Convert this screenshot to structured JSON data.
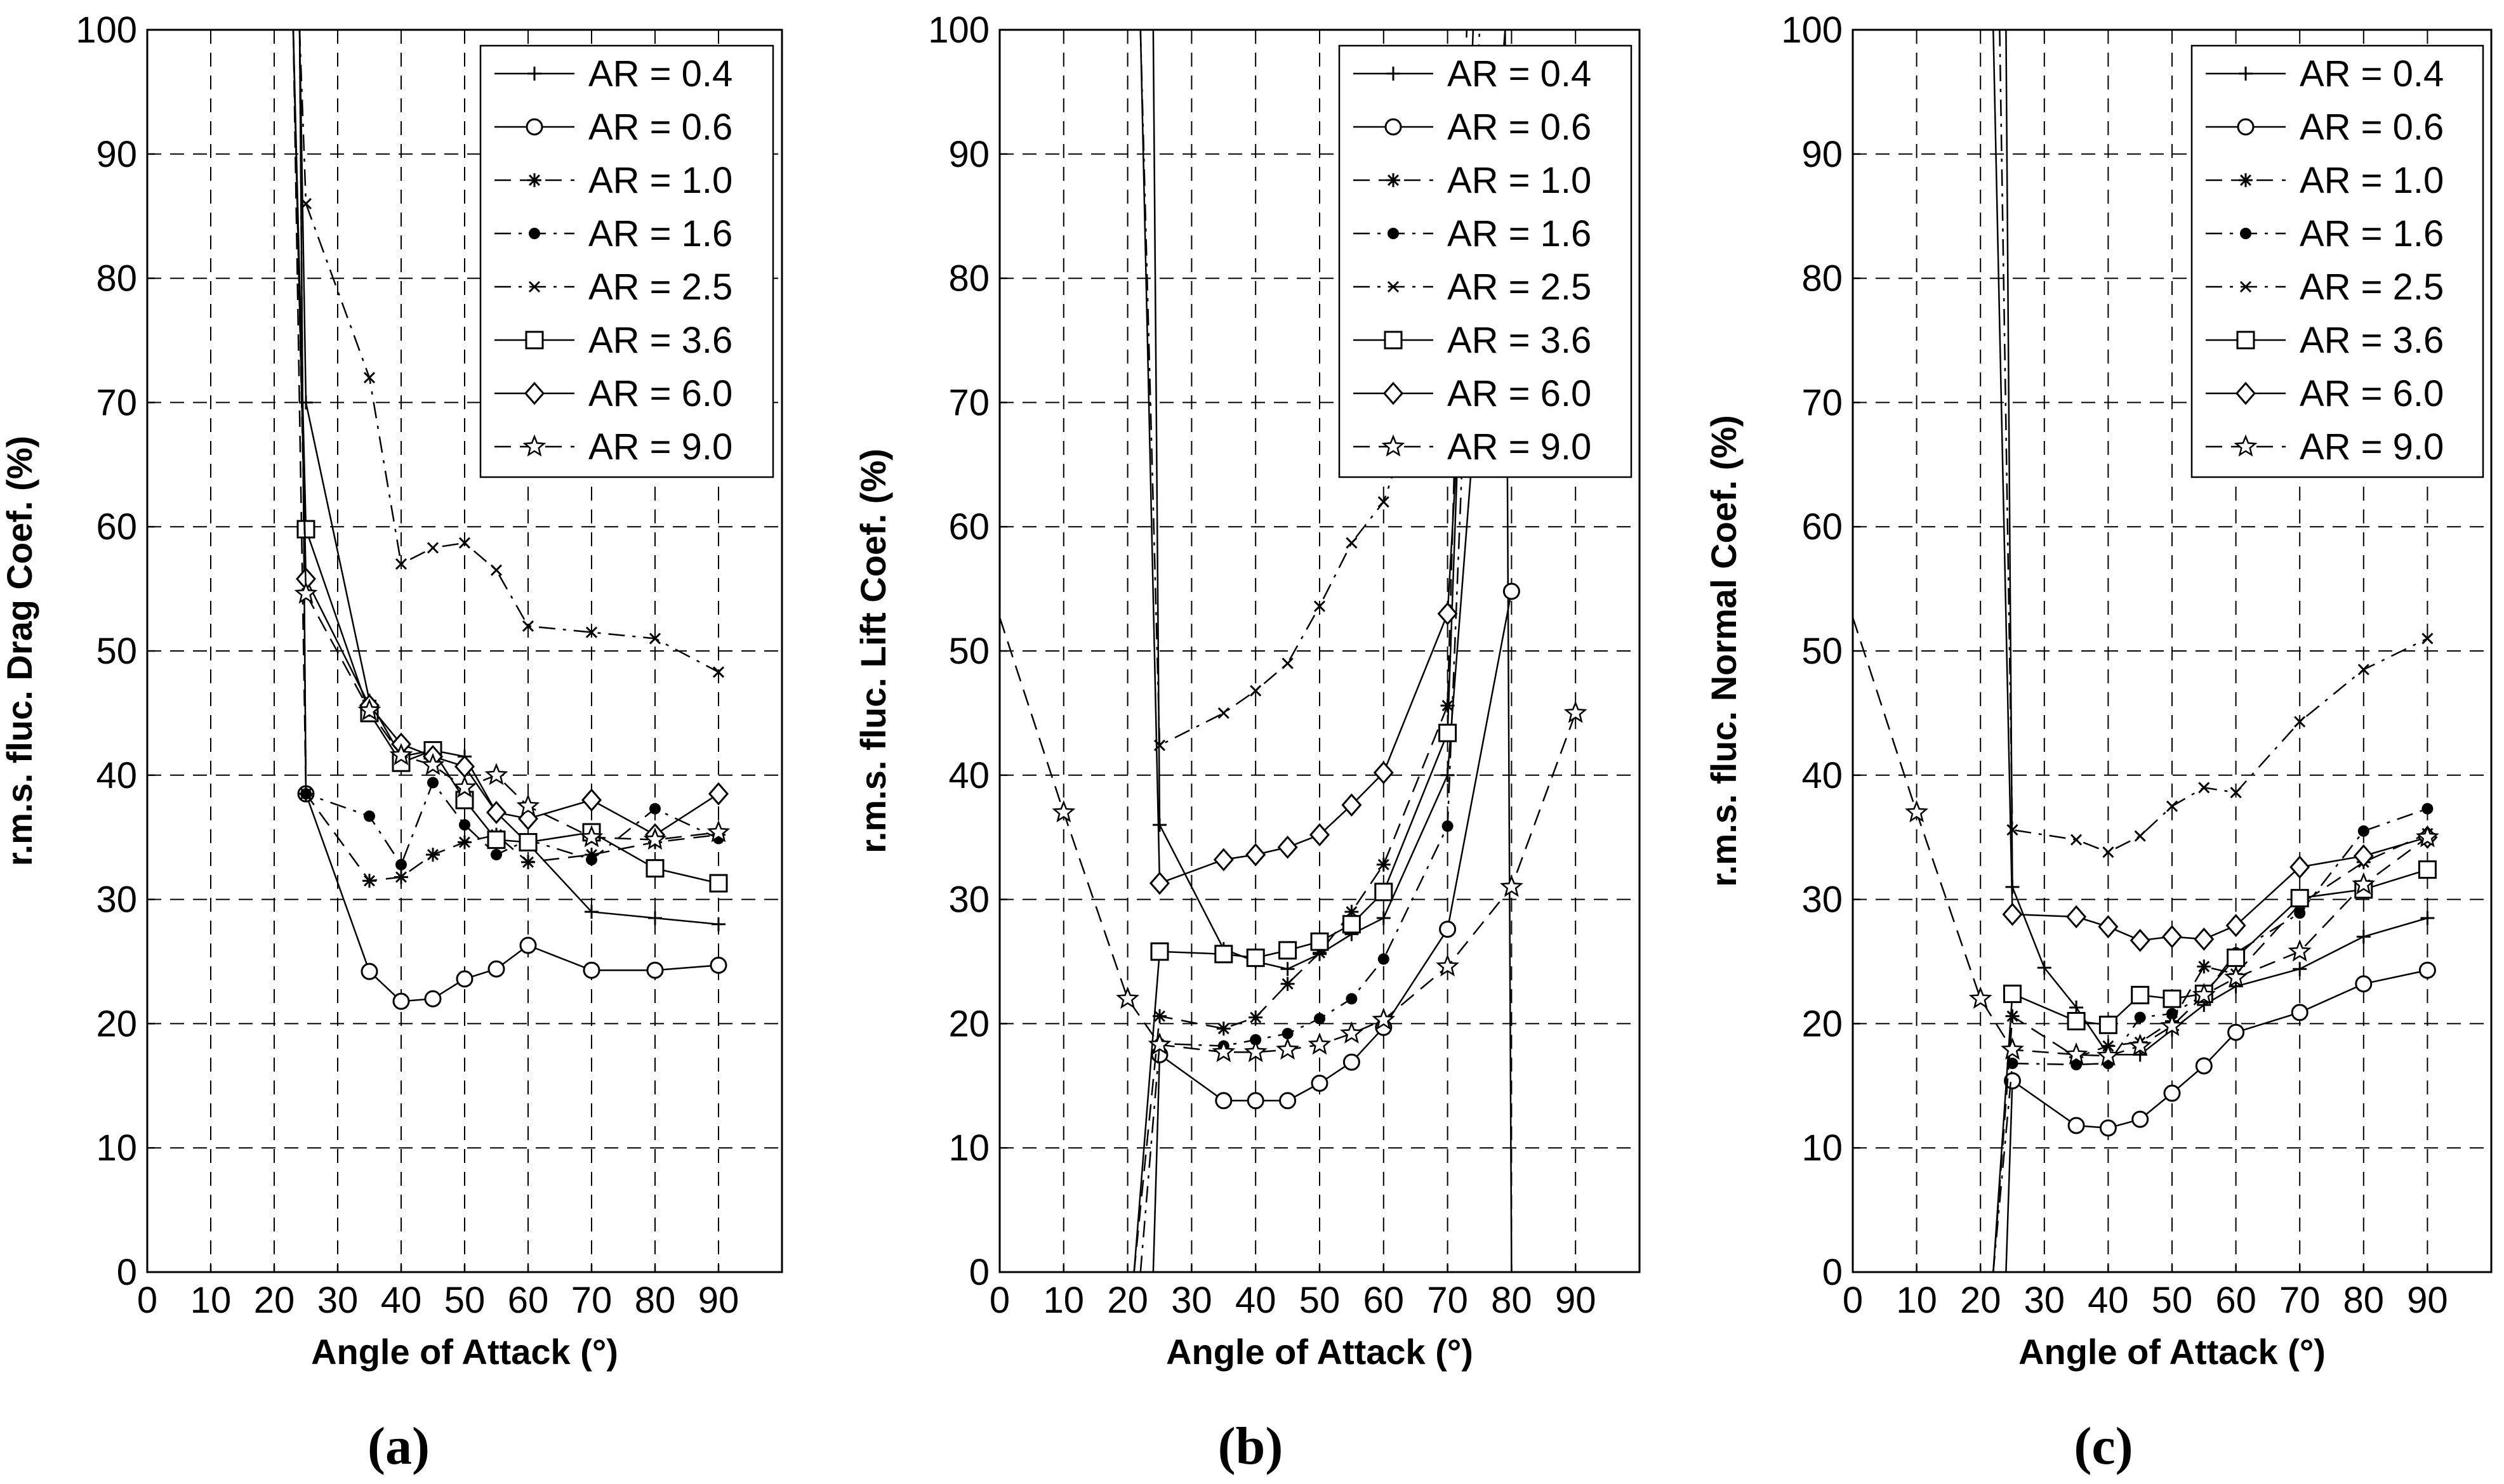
{
  "chart_data": [
    {
      "type": "line",
      "panel_label": "a",
      "xlabel": "Angle of Attack (°)",
      "ylabel": "r.m.s. fluc. Drag Coef. (%)",
      "xlim": [
        0,
        100
      ],
      "ylim": [
        0,
        100
      ],
      "xticks": [
        "0",
        "10",
        "20",
        "30",
        "40",
        "50",
        "60",
        "70",
        "80",
        "90"
      ],
      "yticks": [
        "0",
        "10",
        "20",
        "30",
        "40",
        "50",
        "60",
        "70",
        "80",
        "90",
        "100"
      ],
      "grid": true,
      "legend_position": "top-right",
      "series": [
        {
          "name": "AR = 0.4",
          "marker": "plus",
          "dash": "solid",
          "x": [
            18,
            24,
            25,
            35,
            40,
            45,
            50,
            55,
            60,
            70,
            80,
            90
          ],
          "y": [
            100,
            100,
            70,
            46,
            41.5,
            42,
            41.5,
            37,
            34.5,
            29,
            28.5,
            28
          ]
        },
        {
          "name": "AR = 0.6",
          "marker": "circle",
          "dash": "solid",
          "x": [
            22,
            24,
            25,
            35,
            40,
            45,
            50,
            55,
            60,
            70,
            80,
            90
          ],
          "y": [
            100,
            100,
            38.5,
            24.2,
            21.8,
            22,
            23.6,
            24.4,
            26.3,
            24.3,
            24.3,
            24.7
          ]
        },
        {
          "name": "AR = 1.0",
          "marker": "asterisk",
          "dash": "dash",
          "x": [
            23,
            25,
            35,
            40,
            45,
            50,
            55,
            60,
            70,
            80,
            90
          ],
          "y": [
            100,
            38.5,
            31.5,
            31.8,
            33.6,
            34.6,
            35.2,
            33,
            33.6,
            34.6,
            35.2
          ]
        },
        {
          "name": "AR = 1.6",
          "marker": "dot",
          "dash": "dashdot",
          "x": [
            22,
            24,
            25,
            35,
            40,
            45,
            50,
            55,
            60,
            70,
            80,
            90
          ],
          "y": [
            100,
            100,
            38.5,
            36.7,
            32.8,
            39.4,
            36,
            33.6,
            34.8,
            33.2,
            37.3,
            34.9
          ]
        },
        {
          "name": "AR = 2.5",
          "marker": "x",
          "dash": "dashdot",
          "x": [
            24,
            25,
            35,
            40,
            45,
            50,
            55,
            60,
            70,
            80,
            90
          ],
          "y": [
            100,
            86,
            72,
            57,
            58.3,
            58.7,
            56.5,
            52,
            51.5,
            51,
            48.3
          ]
        },
        {
          "name": "AR = 3.6",
          "marker": "square",
          "dash": "solid",
          "x": [
            20,
            23,
            25,
            35,
            40,
            45,
            50,
            55,
            60,
            70,
            80,
            90
          ],
          "y": [
            100,
            100,
            59.8,
            45,
            41,
            42,
            38,
            34.8,
            34.6,
            35.4,
            32.5,
            31.3
          ]
        },
        {
          "name": "AR = 6.0",
          "marker": "diamond",
          "dash": "solid",
          "x": [
            21,
            23,
            25,
            35,
            40,
            45,
            50,
            55,
            60,
            70,
            80,
            90
          ],
          "y": [
            100,
            100,
            55.8,
            45.6,
            42.5,
            41.5,
            40.7,
            37,
            36.5,
            38,
            35.2,
            38.5
          ]
        },
        {
          "name": "AR = 9.0",
          "marker": "star",
          "dash": "dash",
          "x": [
            20,
            23,
            25,
            35,
            40,
            45,
            50,
            55,
            60,
            70,
            80,
            90
          ],
          "y": [
            100,
            100,
            54.6,
            45.2,
            41.6,
            40.8,
            39,
            40,
            37.5,
            35,
            34.8,
            35.4
          ]
        }
      ]
    },
    {
      "type": "line",
      "panel_label": "b",
      "xlabel": "Angle of Attack (°)",
      "ylabel": "r.m.s. fluc. Lift Coef. (%)",
      "xlim": [
        0,
        100
      ],
      "ylim": [
        0,
        100
      ],
      "xticks": [
        "0",
        "10",
        "20",
        "30",
        "40",
        "50",
        "60",
        "70",
        "80",
        "90"
      ],
      "yticks": [
        "0",
        "10",
        "20",
        "30",
        "40",
        "50",
        "60",
        "70",
        "80",
        "90",
        "100"
      ],
      "grid": true,
      "legend_position": "top-right",
      "series": [
        {
          "name": "AR = 0.4",
          "marker": "plus",
          "dash": "solid",
          "x": [
            20,
            24,
            25,
            35,
            40,
            45,
            50,
            55,
            60,
            70,
            79,
            80
          ],
          "y": [
            100,
            100,
            36,
            26,
            25,
            24.4,
            25.6,
            27.2,
            28.5,
            40,
            100,
            0
          ]
        },
        {
          "name": "AR = 0.6",
          "marker": "circle",
          "dash": "solid",
          "x": [
            20,
            24,
            25,
            35,
            40,
            45,
            50,
            55,
            60,
            70,
            80
          ],
          "y": [
            0,
            0,
            17.5,
            13.8,
            13.8,
            13.8,
            15.2,
            16.9,
            19.7,
            27.6,
            54.8
          ]
        },
        {
          "name": "AR = 1.0",
          "marker": "asterisk",
          "dash": "dash",
          "x": [
            21,
            25,
            35,
            40,
            45,
            50,
            55,
            60,
            70,
            73
          ],
          "y": [
            0,
            20.6,
            19.6,
            20.5,
            23.2,
            25.7,
            29,
            32.8,
            45.6,
            100
          ]
        },
        {
          "name": "AR = 1.6",
          "marker": "dot",
          "dash": "dashdot",
          "x": [
            22,
            25,
            35,
            40,
            45,
            50,
            55,
            60,
            70,
            75
          ],
          "y": [
            0,
            18.4,
            18.2,
            18.7,
            19.2,
            20.4,
            22,
            25.2,
            35.9,
            100
          ]
        },
        {
          "name": "AR = 2.5",
          "marker": "x",
          "dash": "dashdot",
          "x": [
            22,
            25,
            35,
            40,
            45,
            50,
            55,
            60,
            62
          ],
          "y": [
            100,
            42.4,
            45,
            46.8,
            49,
            53.6,
            58.7,
            62,
            65
          ]
        },
        {
          "name": "AR = 3.6",
          "marker": "square",
          "dash": "solid",
          "x": [
            21,
            25,
            35,
            40,
            45,
            50,
            55,
            60,
            70,
            74
          ],
          "y": [
            0,
            25.8,
            25.6,
            25.3,
            25.9,
            26.6,
            28,
            30.6,
            43.4,
            100
          ]
        },
        {
          "name": "AR = 6.0",
          "marker": "diamond",
          "dash": "solid",
          "x": [
            22,
            25,
            35,
            40,
            45,
            50,
            55,
            60,
            70,
            73
          ],
          "y": [
            100,
            31.3,
            33.2,
            33.6,
            34.2,
            35.2,
            37.6,
            40.2,
            53,
            80
          ]
        },
        {
          "name": "AR = 9.0",
          "marker": "star",
          "dash": "dash",
          "x": [
            0,
            10,
            20,
            25,
            35,
            40,
            45,
            50,
            55,
            60,
            70,
            80,
            90
          ],
          "y": [
            52.7,
            37,
            22,
            18.3,
            17.7,
            17.7,
            17.9,
            18.3,
            19.2,
            20.3,
            24.6,
            31,
            45
          ]
        }
      ]
    },
    {
      "type": "line",
      "panel_label": "c",
      "xlabel": "Angle of Attack (°)",
      "ylabel": "r.m.s. fluc. Normal Coef. (%)",
      "xlim": [
        0,
        100
      ],
      "ylim": [
        0,
        100
      ],
      "xticks": [
        "0",
        "10",
        "20",
        "30",
        "40",
        "50",
        "60",
        "70",
        "80",
        "90"
      ],
      "yticks": [
        "0",
        "10",
        "20",
        "30",
        "40",
        "50",
        "60",
        "70",
        "80",
        "90",
        "100"
      ],
      "grid": true,
      "legend_position": "top-right",
      "series": [
        {
          "name": "AR = 0.4",
          "marker": "plus",
          "dash": "solid",
          "x": [
            20,
            24,
            25,
            30,
            35,
            40,
            45,
            50,
            55,
            60,
            70,
            80,
            90
          ],
          "y": [
            100,
            100,
            31,
            24.5,
            21.3,
            17.5,
            17.5,
            19.5,
            21.5,
            23,
            24.4,
            27,
            28.5
          ]
        },
        {
          "name": "AR = 0.6",
          "marker": "circle",
          "dash": "solid",
          "x": [
            22,
            24,
            25,
            35,
            40,
            45,
            50,
            55,
            60,
            70,
            80,
            90
          ],
          "y": [
            0,
            0,
            15.4,
            11.8,
            11.6,
            12.3,
            14.4,
            16.6,
            19.3,
            20.9,
            23.2,
            24.3
          ]
        },
        {
          "name": "AR = 1.0",
          "marker": "asterisk",
          "dash": "dash",
          "x": [
            22,
            25,
            35,
            40,
            45,
            50,
            55,
            60,
            70,
            80,
            90
          ],
          "y": [
            0,
            20.6,
            17.3,
            18.2,
            18.5,
            20.2,
            24.6,
            24,
            29.6,
            33,
            35.3
          ]
        },
        {
          "name": "AR = 1.6",
          "marker": "dot",
          "dash": "dashdot",
          "x": [
            22,
            25,
            35,
            40,
            45,
            50,
            55,
            60,
            70,
            80,
            90
          ],
          "y": [
            0,
            16.8,
            16.7,
            16.8,
            20.5,
            20.8,
            22.3,
            25.7,
            28.9,
            35.5,
            37.3
          ]
        },
        {
          "name": "AR = 2.5",
          "marker": "x",
          "dash": "dashdot",
          "x": [
            23,
            25,
            35,
            40,
            45,
            50,
            55,
            60,
            70,
            80,
            90
          ],
          "y": [
            100,
            35.6,
            34.8,
            33.8,
            35.1,
            37.5,
            39,
            38.6,
            44.3,
            48.5,
            51
          ]
        },
        {
          "name": "AR = 3.6",
          "marker": "square",
          "dash": "solid",
          "x": [
            22,
            25,
            35,
            40,
            45,
            50,
            55,
            60,
            70,
            80,
            90
          ],
          "y": [
            0,
            22.4,
            20.2,
            19.9,
            22.3,
            22,
            22.4,
            25.3,
            30.1,
            30.8,
            32.4
          ]
        },
        {
          "name": "AR = 6.0",
          "marker": "diamond",
          "dash": "solid",
          "x": [
            22,
            25,
            35,
            40,
            45,
            50,
            55,
            60,
            70,
            80,
            90
          ],
          "y": [
            100,
            28.8,
            28.6,
            27.8,
            26.7,
            27,
            26.8,
            27.9,
            32.6,
            33.5,
            35
          ]
        },
        {
          "name": "AR = 9.0",
          "marker": "star",
          "dash": "dash",
          "x": [
            0,
            10,
            20,
            25,
            35,
            40,
            45,
            50,
            55,
            60,
            70,
            80,
            90
          ],
          "y": [
            52.7,
            37,
            22,
            17.9,
            17.5,
            17.4,
            18.2,
            19.8,
            22.3,
            23.7,
            25.8,
            31.2,
            35
          ]
        }
      ]
    }
  ]
}
